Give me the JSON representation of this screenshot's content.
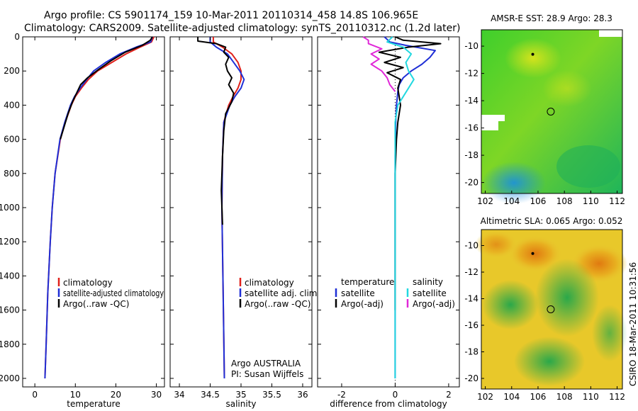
{
  "header": {
    "line1": "Argo profile: CS 5901174_159 10-Mar-2011 20110314_458 14.8S 106.965E",
    "line2": "Climatology: CARS2009. Satellite-adjusted climatology: synTS_20110312.nc (1.2d later)"
  },
  "side_label": "CSIRO 18-Mar-2011 10:31:56",
  "colors": {
    "climatology": "#e0201a",
    "satellite": "#1f2fd6",
    "argo": "#000000",
    "salinity_sat": "#22d8e0",
    "salinity_argo": "#e028d8"
  },
  "chart_data": [
    {
      "type": "line",
      "panel": "temperature",
      "xlabel": "temperature",
      "ylabel": "",
      "xlim": [
        -3,
        32
      ],
      "ylim": [
        0,
        2050
      ],
      "y_reversed": true,
      "xticks": [
        0,
        10,
        20,
        30
      ],
      "yticks": [
        0,
        200,
        400,
        600,
        800,
        1000,
        1200,
        1400,
        1600,
        1800,
        2000
      ],
      "legend": [
        "climatology",
        "satellite-adjusted climatology",
        "Argo(..raw -QC)"
      ],
      "series": [
        {
          "name": "climatology",
          "color_key": "climatology",
          "depth": [
            0,
            30,
            60,
            100,
            150,
            200,
            250,
            300,
            350,
            400,
            500,
            600,
            800,
            1000,
            1200,
            1500,
            1800,
            2000
          ],
          "values": [
            29.4,
            28.8,
            26,
            22.5,
            19,
            15.5,
            13.2,
            11.5,
            10,
            9,
            7.5,
            6.3,
            5,
            4.3,
            3.8,
            3.2,
            2.8,
            2.5
          ]
        },
        {
          "name": "satellite-adjusted climatology",
          "color_key": "satellite",
          "depth": [
            0,
            30,
            60,
            100,
            150,
            200,
            250,
            300,
            350,
            400,
            500,
            600,
            800,
            1000,
            1200,
            1500,
            1800,
            2000
          ],
          "values": [
            29,
            28.6,
            25,
            21,
            17.5,
            14.5,
            12.8,
            11.2,
            9.8,
            8.8,
            7.4,
            6.2,
            5,
            4.3,
            3.8,
            3.2,
            2.8,
            2.5
          ]
        },
        {
          "name": "Argo(..raw -QC)",
          "color_key": "argo",
          "depth": [
            0,
            20,
            50,
            90,
            140,
            190,
            240,
            280,
            330,
            380,
            450,
            520,
            600
          ],
          "values": [
            29,
            28.5,
            26.5,
            22.3,
            18.8,
            15.8,
            13,
            11.3,
            10.3,
            9.3,
            8.2,
            7.3,
            6.3
          ]
        }
      ]
    },
    {
      "type": "line",
      "panel": "salinity",
      "xlabel": "salinity",
      "ylabel": "",
      "xlim": [
        33.85,
        36.15
      ],
      "ylim": [
        0,
        2050
      ],
      "y_reversed": true,
      "xticks": [
        34,
        34.5,
        35,
        35.5,
        36
      ],
      "legend": [
        "climatology",
        "satellite adj. clim.",
        "Argo(..raw -QC)"
      ],
      "annotation": [
        "Argo AUSTRALIA",
        "PI: Susan Wijffels"
      ],
      "series": [
        {
          "name": "climatology",
          "color_key": "climatology",
          "depth": [
            0,
            30,
            60,
            100,
            150,
            200,
            250,
            300,
            350,
            400,
            500,
            700,
            1000,
            1500,
            2000
          ],
          "values": [
            34.55,
            34.55,
            34.7,
            34.85,
            34.95,
            35.0,
            35.0,
            34.95,
            34.87,
            34.8,
            34.72,
            34.7,
            34.69,
            34.71,
            34.73
          ]
        },
        {
          "name": "satellite adj. clim.",
          "color_key": "satellite",
          "depth": [
            0,
            30,
            60,
            100,
            150,
            200,
            250,
            300,
            350,
            400,
            500,
            700,
            1000,
            1500,
            2000
          ],
          "values": [
            34.5,
            34.5,
            34.6,
            34.78,
            34.88,
            34.98,
            35.05,
            35.0,
            34.9,
            34.82,
            34.72,
            34.7,
            34.69,
            34.71,
            34.73
          ]
        },
        {
          "name": "Argo(..raw -QC)",
          "color_key": "argo",
          "depth": [
            0,
            25,
            40,
            60,
            90,
            120,
            160,
            200,
            240,
            280,
            330,
            380,
            450,
            550,
            700,
            900,
            1100
          ],
          "values": [
            34.3,
            34.3,
            34.6,
            34.75,
            34.72,
            34.8,
            34.75,
            34.78,
            34.85,
            34.8,
            34.88,
            34.85,
            34.75,
            34.72,
            34.7,
            34.68,
            34.7
          ]
        }
      ]
    },
    {
      "type": "line",
      "panel": "difference",
      "xlabel": "difference from climatology",
      "ylabel": "",
      "xlim": [
        -2.9,
        2.4
      ],
      "ylim": [
        0,
        2050
      ],
      "y_reversed": true,
      "xticks": [
        -2,
        0,
        2
      ],
      "legend_left": [
        "temperature",
        "satellite",
        "Argo(-adj)"
      ],
      "legend_right": [
        "salinity",
        "satellite",
        "Argo(-adj)"
      ],
      "series": [
        {
          "name": "satellite",
          "group": "temperature",
          "color_key": "satellite",
          "depth": [
            0,
            30,
            50,
            80,
            120,
            160,
            200,
            240,
            280,
            320,
            400,
            500,
            700,
            1000,
            1500,
            2000
          ],
          "values": [
            -0.4,
            -0.2,
            0.4,
            1.5,
            1.3,
            1.0,
            0.6,
            0.3,
            0.15,
            0.1,
            0.05,
            0.02,
            0,
            0,
            0,
            0
          ]
        },
        {
          "name": "Argo(-adj)",
          "group": "temperature",
          "color_key": "argo",
          "depth": [
            0,
            20,
            40,
            60,
            90,
            120,
            150,
            180,
            210,
            250,
            300,
            350,
            400,
            500,
            600,
            800,
            1000,
            1300,
            1600
          ],
          "values": [
            0,
            0.3,
            1.7,
            0.5,
            -0.6,
            0.2,
            -0.4,
            0.3,
            -0.3,
            0.2,
            0.1,
            0.15,
            0.2,
            0.1,
            0.05,
            0,
            0,
            0,
            0
          ]
        },
        {
          "name": "satellite",
          "group": "salinity",
          "color_key": "salinity_sat",
          "depth": [
            0,
            30,
            60,
            100,
            150,
            200,
            250,
            300,
            350,
            400,
            500,
            1000,
            2000
          ],
          "values": [
            -0.1,
            -0.3,
            0.3,
            0.6,
            0.4,
            0.5,
            0.7,
            0.5,
            0.3,
            0.1,
            0,
            0,
            0
          ]
        },
        {
          "name": "Argo(-adj)",
          "group": "salinity",
          "color_key": "salinity_argo",
          "depth": [
            0,
            20,
            40,
            70,
            100,
            130,
            160,
            200,
            240,
            280,
            320
          ],
          "values": [
            -1.2,
            -1.0,
            -1.0,
            -0.5,
            -0.9,
            -0.6,
            -0.9,
            -0.5,
            -0.3,
            -0.2,
            0
          ]
        }
      ]
    }
  ],
  "maps": [
    {
      "title": "AMSR-E SST: 28.9 Argo: 28.3",
      "xlim": [
        101.7,
        112.4
      ],
      "ylim": [
        -20.8,
        -8.8
      ],
      "xticks": [
        102,
        104,
        106,
        108,
        110,
        112
      ],
      "yticks": [
        -10,
        -12,
        -14,
        -16,
        -18,
        -20
      ],
      "argo_position": {
        "lon": 106.965,
        "lat": -14.8
      },
      "marker_position": {
        "lon": 105.6,
        "lat": -10.6
      }
    },
    {
      "title": "Altimetric SLA: 0.065 Argo: 0.052",
      "xlim": [
        101.7,
        112.4
      ],
      "ylim": [
        -20.8,
        -8.8
      ],
      "xticks": [
        102,
        104,
        106,
        108,
        110,
        112
      ],
      "yticks": [
        -10,
        -12,
        -14,
        -16,
        -18,
        -20
      ],
      "argo_position": {
        "lon": 106.965,
        "lat": -14.8
      },
      "marker_position": {
        "lon": 105.6,
        "lat": -10.6
      }
    }
  ]
}
